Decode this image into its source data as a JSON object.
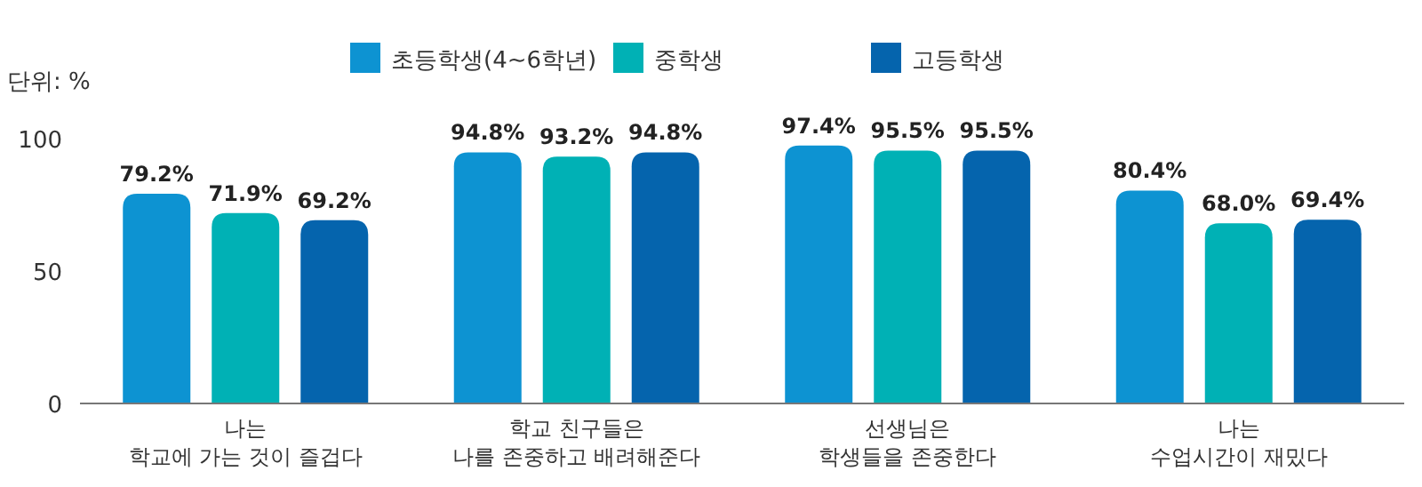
{
  "chart_data": {
    "type": "bar",
    "ylabel": "단위: %",
    "categories": [
      "나는\n학교에 가는 것이 즐겁다",
      "학교 친구들은\n나를 존중하고 배려해준다",
      "선생님은\n학생들을 존중한다",
      "나는\n수업시간이 재밌다"
    ],
    "series": [
      {
        "name": "초등학생(4~6학년)",
        "color": "#0d93d2",
        "values": [
          79.2,
          94.8,
          97.4,
          80.4
        ],
        "value_labels": [
          "79.2%",
          "94.8%",
          "97.4%",
          "80.4%"
        ]
      },
      {
        "name": "중학생",
        "color": "#00b1b5",
        "values": [
          71.9,
          93.2,
          95.5,
          68.0
        ],
        "value_labels": [
          "71.9%",
          "93.2%",
          "95.5%",
          "68.0%"
        ]
      },
      {
        "name": "고등학생",
        "color": "#0564ad",
        "values": [
          69.2,
          94.8,
          95.5,
          69.4
        ],
        "value_labels": [
          "69.2%",
          "94.8%",
          "95.5%",
          "69.4%"
        ]
      }
    ],
    "ylim": [
      0,
      100
    ],
    "yticks": [
      0,
      50,
      100
    ],
    "legend": "top"
  }
}
